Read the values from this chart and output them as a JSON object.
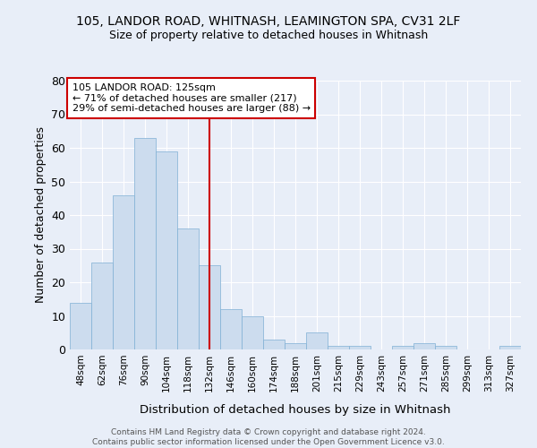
{
  "title1": "105, LANDOR ROAD, WHITNASH, LEAMINGTON SPA, CV31 2LF",
  "title2": "Size of property relative to detached houses in Whitnash",
  "xlabel": "Distribution of detached houses by size in Whitnash",
  "ylabel": "Number of detached properties",
  "bar_labels": [
    "48sqm",
    "62sqm",
    "76sqm",
    "90sqm",
    "104sqm",
    "118sqm",
    "132sqm",
    "146sqm",
    "160sqm",
    "174sqm",
    "188sqm",
    "201sqm",
    "215sqm",
    "229sqm",
    "243sqm",
    "257sqm",
    "271sqm",
    "285sqm",
    "299sqm",
    "313sqm",
    "327sqm"
  ],
  "bar_values": [
    14,
    26,
    46,
    63,
    59,
    36,
    25,
    12,
    10,
    3,
    2,
    5,
    1,
    1,
    0,
    1,
    2,
    1,
    0,
    0,
    1
  ],
  "bar_color": "#ccdcee",
  "bar_edge_color": "#7fafd4",
  "background_color": "#e8eef8",
  "grid_color": "#ffffff",
  "vline_x": 6.0,
  "vline_color": "#cc0000",
  "annotation_line1": "105 LANDOR ROAD: 125sqm",
  "annotation_line2": "← 71% of detached houses are smaller (217)",
  "annotation_line3": "29% of semi-detached houses are larger (88) →",
  "annotation_box_color": "#ffffff",
  "annotation_box_edge": "#cc0000",
  "ylim": [
    0,
    80
  ],
  "yticks": [
    0,
    10,
    20,
    30,
    40,
    50,
    60,
    70,
    80
  ],
  "footer1": "Contains HM Land Registry data © Crown copyright and database right 2024.",
  "footer2": "Contains public sector information licensed under the Open Government Licence v3.0."
}
